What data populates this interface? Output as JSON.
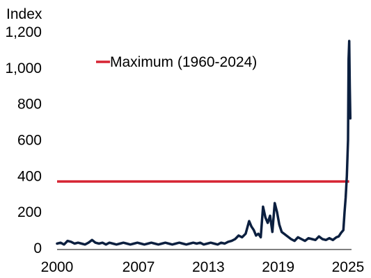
{
  "chart_data": {
    "type": "line",
    "ylabel": "Index",
    "xlabel": "",
    "ylim": [
      0,
      1200
    ],
    "xlim": [
      2000,
      2025.3
    ],
    "x_ticks": [
      2000,
      2007,
      2013,
      2019,
      2025
    ],
    "x_tick_labels": [
      "2000",
      "2007",
      "2013",
      "2019",
      "2025"
    ],
    "y_ticks": [
      0,
      200,
      400,
      600,
      800,
      1000,
      1200
    ],
    "y_tick_labels": [
      "0",
      "200",
      "400",
      "600",
      "800",
      "1,000",
      "1,200"
    ],
    "grid": false,
    "legend_position": "top-left",
    "reference_lines": [
      {
        "name": "Maximum (1960-2024)",
        "value": 370,
        "color": "#d62433"
      }
    ],
    "series": [
      {
        "color": "#0b1f3f",
        "x": [
          2000.0,
          2000.3,
          2000.6,
          2000.9,
          2001.2,
          2001.5,
          2001.8,
          2002.1,
          2002.4,
          2002.7,
          2003.0,
          2003.3,
          2003.6,
          2003.9,
          2004.2,
          2004.5,
          2004.8,
          2005.1,
          2005.4,
          2005.7,
          2006.0,
          2006.3,
          2006.6,
          2006.9,
          2007.2,
          2007.5,
          2007.8,
          2008.1,
          2008.4,
          2008.7,
          2009.0,
          2009.3,
          2009.6,
          2009.9,
          2010.2,
          2010.5,
          2010.8,
          2011.1,
          2011.4,
          2011.7,
          2012.0,
          2012.3,
          2012.6,
          2012.9,
          2013.2,
          2013.5,
          2013.8,
          2014.1,
          2014.4,
          2014.7,
          2015.0,
          2015.3,
          2015.6,
          2015.9,
          2016.2,
          2016.5,
          2016.7,
          2016.9,
          2017.1,
          2017.3,
          2017.5,
          2017.7,
          2017.9,
          2018.1,
          2018.3,
          2018.5,
          2018.7,
          2018.9,
          2019.1,
          2019.3,
          2019.5,
          2019.7,
          2019.9,
          2020.1,
          2020.4,
          2020.7,
          2021.0,
          2021.3,
          2021.6,
          2021.9,
          2022.2,
          2022.5,
          2022.8,
          2023.1,
          2023.4,
          2023.7,
          2024.0,
          2024.2,
          2024.4,
          2024.6,
          2024.7,
          2024.8,
          2024.9,
          2025.0,
          2025.05,
          2025.1,
          2025.15,
          2025.2
        ],
        "y": [
          25,
          30,
          20,
          40,
          35,
          25,
          30,
          25,
          20,
          30,
          45,
          30,
          25,
          30,
          20,
          30,
          25,
          20,
          25,
          30,
          25,
          20,
          25,
          30,
          25,
          20,
          25,
          30,
          25,
          20,
          25,
          30,
          25,
          20,
          25,
          30,
          25,
          20,
          25,
          30,
          25,
          30,
          20,
          25,
          30,
          25,
          20,
          30,
          25,
          35,
          40,
          50,
          70,
          60,
          80,
          150,
          120,
          100,
          70,
          80,
          60,
          230,
          170,
          140,
          180,
          90,
          250,
          200,
          130,
          90,
          80,
          70,
          60,
          50,
          40,
          60,
          50,
          40,
          55,
          50,
          45,
          65,
          50,
          45,
          55,
          45,
          60,
          65,
          85,
          100,
          200,
          280,
          400,
          600,
          1050,
          1150,
          900,
          720
        ]
      }
    ]
  }
}
